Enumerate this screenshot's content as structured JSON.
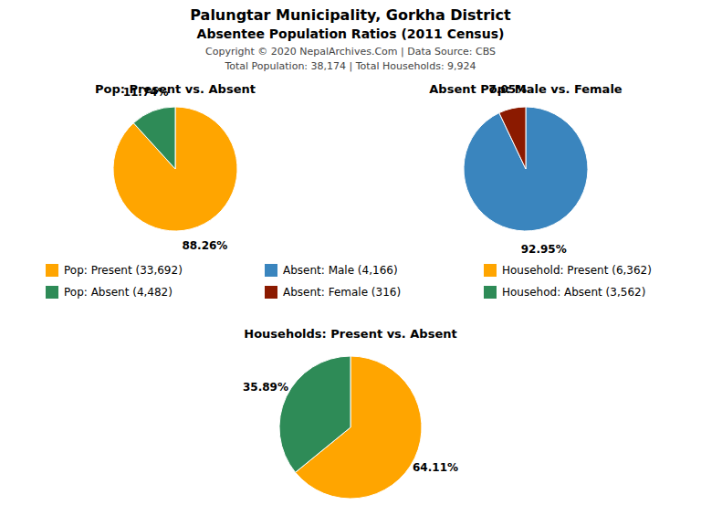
{
  "title": "Palungtar Municipality, Gorkha District",
  "subtitle": "Absentee Population Ratios (2011 Census)",
  "annotations": [
    "Copyright © 2020 NepalArchives.Com | Data Source: CBS",
    "Total Population: 38,174 | Total Households: 9,924"
  ],
  "chart_data": [
    {
      "type": "pie",
      "title": "Pop: Present vs. Absent",
      "categories": [
        "Pop: Present (33,692)",
        "Pop: Absent (4,482)"
      ],
      "values": [
        88.26,
        11.74
      ],
      "value_labels": [
        "88.26%",
        "11.74%"
      ],
      "colors": [
        "#FFA500",
        "#2E8B57"
      ],
      "data_labels": true
    },
    {
      "type": "pie",
      "title": "Absent Pop: Male vs. Female",
      "categories": [
        "Absent: Male (4,166)",
        "Absent: Female (316)"
      ],
      "values": [
        92.95,
        7.05
      ],
      "value_labels": [
        "92.95%",
        "7.05%"
      ],
      "colors": [
        "#3A85BE",
        "#8B1A00"
      ],
      "data_labels": true
    },
    {
      "type": "pie",
      "title": "Households: Present vs. Absent",
      "categories": [
        "Household: Present (6,362)",
        "Househod: Absent (3,562)"
      ],
      "values": [
        64.11,
        35.89
      ],
      "value_labels": [
        "64.11%",
        "35.89%"
      ],
      "colors": [
        "#FFA500",
        "#2E8B57"
      ],
      "data_labels": true
    }
  ]
}
